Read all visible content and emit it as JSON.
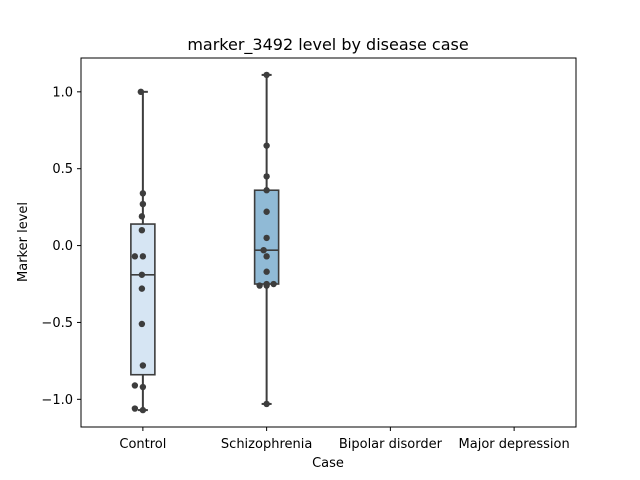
{
  "chart_data": {
    "type": "box",
    "title": "marker_3492 level by disease case",
    "xlabel": "Case",
    "ylabel": "Marker level",
    "categories": [
      "Control",
      "Schizophrenia",
      "Bipolar disorder",
      "Major depression"
    ],
    "ylim": [
      -1.18,
      1.22
    ],
    "yticks": [
      1.0,
      0.5,
      0.0,
      -0.5,
      -1.0
    ],
    "ytick_labels": [
      "1.0",
      "0.5",
      "0.0",
      "−0.5",
      "−1.0"
    ],
    "grid": false,
    "legend": "none",
    "colors": {
      "control_box": "#d6e5f3",
      "schizophrenia_box": "#90bad6",
      "box_edge": "#3d3d3d",
      "point": "#3d3d3d"
    },
    "boxes": [
      {
        "category": "Control",
        "q1": -0.84,
        "median": -0.19,
        "q3": 0.14,
        "whisker_low": -1.07,
        "whisker_high": 1.0
      },
      {
        "category": "Schizophrenia",
        "q1": -0.25,
        "median": -0.03,
        "q3": 0.36,
        "whisker_low": -1.03,
        "whisker_high": 1.11
      },
      {
        "category": "Bipolar disorder",
        "q1": null,
        "median": null,
        "q3": null,
        "whisker_low": null,
        "whisker_high": null
      },
      {
        "category": "Major depression",
        "q1": null,
        "median": null,
        "q3": null,
        "whisker_low": null,
        "whisker_high": null
      }
    ],
    "points": {
      "Control": [
        1.0,
        0.34,
        0.27,
        0.19,
        0.1,
        -0.07,
        -0.07,
        -0.19,
        -0.28,
        -0.51,
        -0.78,
        -0.91,
        -0.92,
        -1.06,
        -1.07
      ],
      "Schizophrenia": [
        1.11,
        0.65,
        0.45,
        0.36,
        0.22,
        0.05,
        -0.03,
        -0.07,
        -0.17,
        -0.25,
        -0.26,
        -0.26,
        -0.25,
        -1.03
      ],
      "Bipolar disorder": [],
      "Major depression": []
    }
  }
}
